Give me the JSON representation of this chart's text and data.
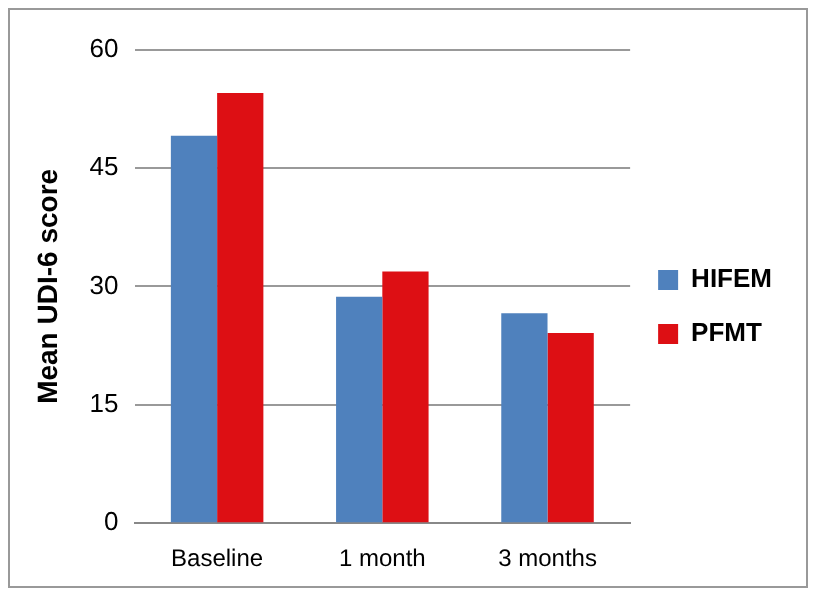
{
  "chart_data": {
    "type": "bar",
    "ylabel": "Mean UDI-6 score",
    "categories": [
      "Baseline",
      "1 month",
      "3 months"
    ],
    "series": [
      {
        "name": "HIFEM",
        "color": "#4f81bd",
        "values": [
          49.1,
          28.7,
          26.6
        ]
      },
      {
        "name": "PFMT",
        "color": "#dd0f14",
        "values": [
          54.5,
          31.9,
          24.1
        ]
      }
    ],
    "ylim": [
      0,
      60
    ],
    "yticks": [
      0,
      15,
      30,
      45,
      60
    ],
    "grid": "y",
    "legend": "right"
  }
}
